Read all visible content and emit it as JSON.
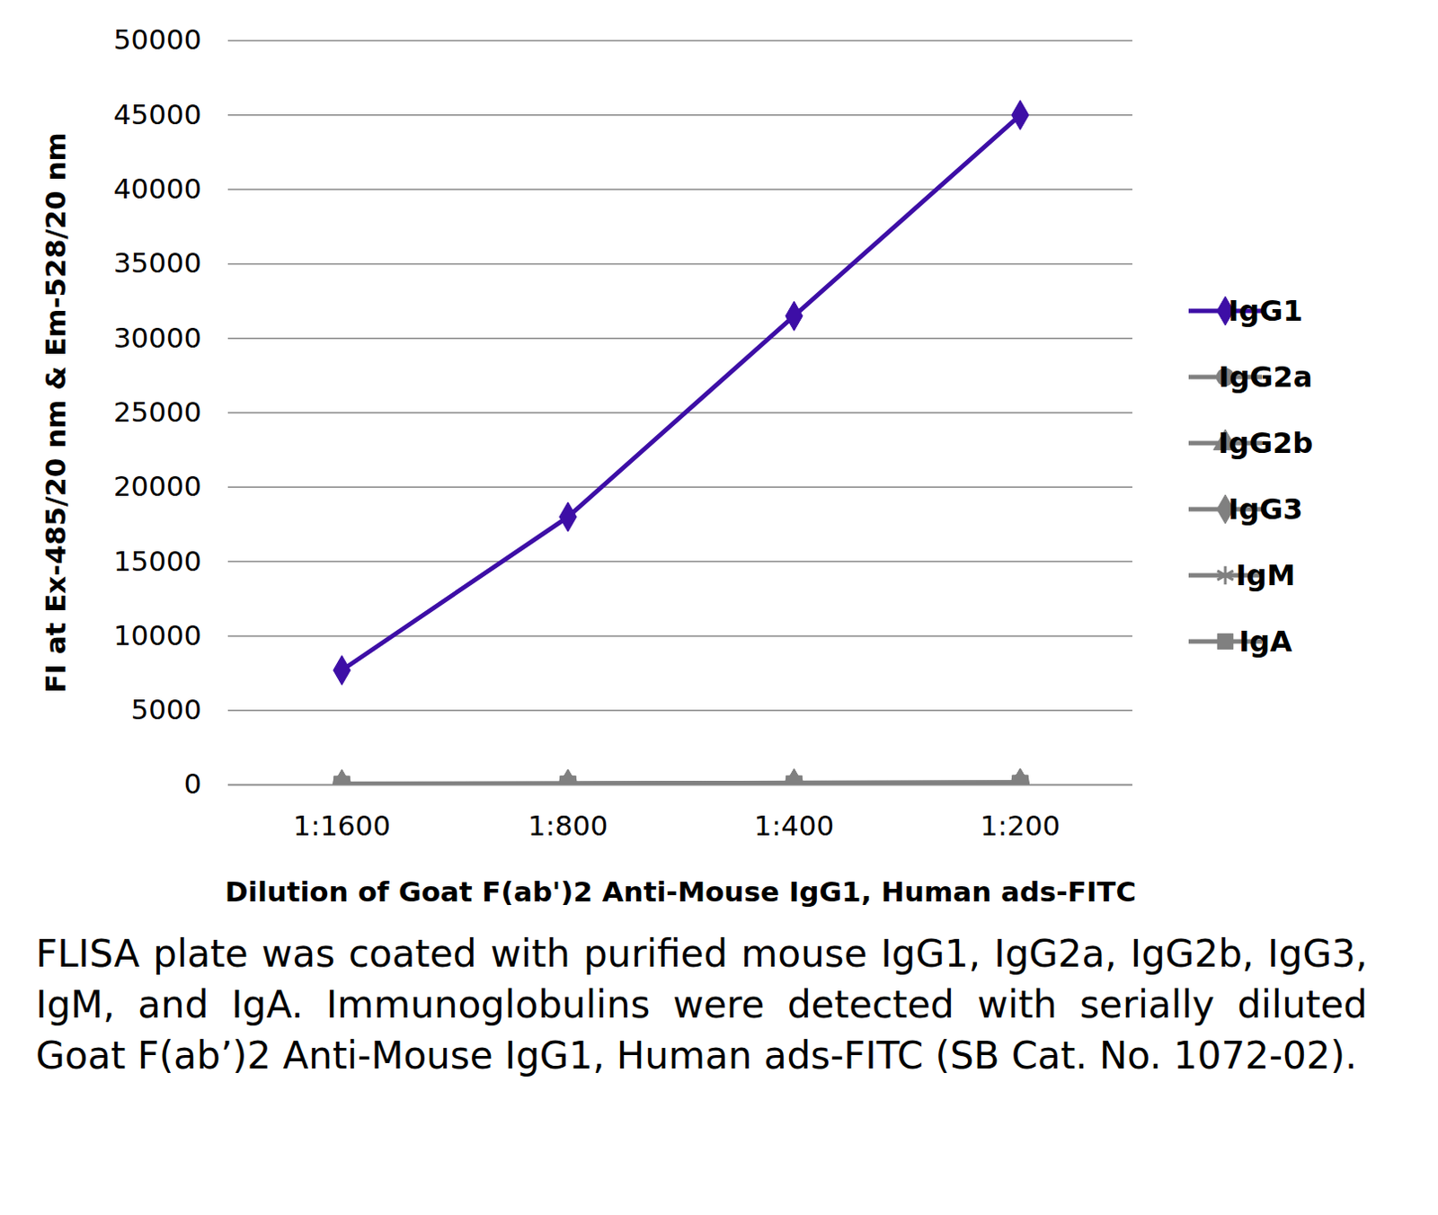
{
  "chart_data": {
    "type": "line",
    "x_label": "Dilution of Goat F(ab')2 Anti-Mouse IgG1, Human ads-FITC",
    "y_label": "FI at Ex-485/20 nm & Em-528/20 nm",
    "caption": "FLISA plate was coated with purified mouse IgG1, IgG2a, IgG2b, IgG3, IgM, and IgA.  Immunoglobulins were detected with serially diluted Goat F(ab’)2 Anti-Mouse IgG1, Human ads-FITC (SB Cat. No. 1072-02).",
    "categories": [
      "1:1600",
      "1:800",
      "1:400",
      "1:200"
    ],
    "series": [
      {
        "name": "IgG1",
        "color": "#3d0ea6",
        "marker": "diamond",
        "values": [
          7700,
          18000,
          31500,
          45000
        ]
      },
      {
        "name": "IgG2a",
        "color": "#808080",
        "marker": "circle",
        "values": [
          50,
          70,
          100,
          130
        ]
      },
      {
        "name": "IgG2b",
        "color": "#808080",
        "marker": "triangle",
        "values": [
          60,
          80,
          120,
          150
        ]
      },
      {
        "name": "IgG3",
        "color": "#808080",
        "marker": "diamond",
        "values": [
          40,
          60,
          90,
          120
        ]
      },
      {
        "name": "IgM",
        "color": "#808080",
        "marker": "asterisk",
        "values": [
          70,
          90,
          130,
          170
        ]
      },
      {
        "name": "IgA",
        "color": "#808080",
        "marker": "square",
        "values": [
          50,
          60,
          80,
          110
        ]
      }
    ],
    "ylim": [
      0,
      50000
    ],
    "yticks": [
      0,
      5000,
      10000,
      15000,
      20000,
      25000,
      30000,
      35000,
      40000,
      45000,
      50000
    ],
    "grid": true,
    "legend": "right"
  }
}
